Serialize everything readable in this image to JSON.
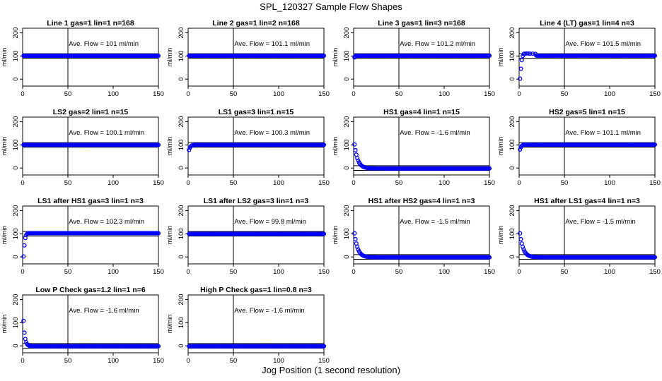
{
  "figure": {
    "title": "SPL_120327  Sample Flow Shapes",
    "xlabel": "Jog Position (1 second resolution)"
  },
  "style": {
    "point_color": "#0000ff",
    "axis_color": "#000000",
    "refline_color": "#000000"
  },
  "chart_data": [
    {
      "type": "scatter",
      "title": "Line 1 gas=1 lin=1 n=168",
      "ylabel": "ml/min",
      "annotation": "Ave. Flow =  101  ml/min",
      "xlim": [
        0,
        150
      ],
      "ylim": [
        -30,
        220
      ],
      "xticks": [
        0,
        50,
        100,
        150
      ],
      "yticks": [
        0,
        100,
        200
      ],
      "vline": 50,
      "hlines": [
        90,
        110
      ],
      "shape": "steady",
      "level": 101,
      "x": [
        0,
        150
      ]
    },
    {
      "type": "scatter",
      "title": "Line 2 gas=1 lin=2 n=168",
      "ylabel": "ml/min",
      "annotation": "Ave. Flow =  101.1  ml/min",
      "xlim": [
        0,
        150
      ],
      "ylim": [
        -30,
        220
      ],
      "xticks": [
        0,
        50,
        100,
        150
      ],
      "yticks": [
        0,
        100,
        200
      ],
      "vline": 50,
      "hlines": [
        90,
        110
      ],
      "shape": "steady",
      "level": 101.1,
      "x": [
        0,
        150
      ]
    },
    {
      "type": "scatter",
      "title": "Line 3 gas=1 lin=3 n=168",
      "ylabel": "ml/min",
      "annotation": "Ave. Flow =  101.2  ml/min",
      "xlim": [
        0,
        150
      ],
      "ylim": [
        -30,
        220
      ],
      "xticks": [
        0,
        50,
        100,
        150
      ],
      "yticks": [
        0,
        100,
        200
      ],
      "vline": 50,
      "hlines": [
        90,
        110
      ],
      "shape": "steady",
      "level": 101.2,
      "x": [
        0,
        150
      ],
      "start_points": [
        [
          1,
          94
        ],
        [
          2,
          98
        ]
      ]
    },
    {
      "type": "scatter",
      "title": "Line 4 (LT) gas=1 lin=4 n=3",
      "ylabel": "ml/min",
      "annotation": "Ave. Flow =  101.5  ml/min",
      "xlim": [
        0,
        150
      ],
      "ylim": [
        -30,
        220
      ],
      "xticks": [
        0,
        50,
        100,
        150
      ],
      "yticks": [
        0,
        100,
        200
      ],
      "vline": 50,
      "hlines": [
        90,
        110
      ],
      "shape": "steady",
      "level": 101.5,
      "x": [
        0,
        150
      ],
      "start_points": [
        [
          1,
          2
        ],
        [
          2,
          45
        ],
        [
          3,
          82
        ],
        [
          4,
          100
        ],
        [
          5,
          108
        ],
        [
          6,
          110
        ],
        [
          8,
          111
        ],
        [
          10,
          111
        ],
        [
          12,
          110
        ],
        [
          15,
          110
        ],
        [
          18,
          109
        ]
      ]
    },
    {
      "type": "scatter",
      "title": "LS2 gas=2 lin=1 n=15",
      "ylabel": "ml/min",
      "annotation": "Ave. Flow =  100.1  ml/min",
      "xlim": [
        0,
        150
      ],
      "ylim": [
        -30,
        220
      ],
      "xticks": [
        0,
        50,
        100,
        150
      ],
      "yticks": [
        0,
        100,
        200
      ],
      "vline": 50,
      "hlines": [
        90,
        110
      ],
      "shape": "steady",
      "level": 100.1,
      "x": [
        0,
        150
      ]
    },
    {
      "type": "scatter",
      "title": "LS1 gas=3 lin=1 n=15",
      "ylabel": "ml/min",
      "annotation": "Ave. Flow =  100.3  ml/min",
      "xlim": [
        0,
        150
      ],
      "ylim": [
        -30,
        220
      ],
      "xticks": [
        0,
        50,
        100,
        150
      ],
      "yticks": [
        0,
        100,
        200
      ],
      "vline": 50,
      "hlines": [
        90,
        110
      ],
      "shape": "steady",
      "level": 100.3,
      "x": [
        0,
        150
      ],
      "start_points": [
        [
          1,
          78
        ],
        [
          2,
          88
        ],
        [
          3,
          94
        ],
        [
          4,
          97
        ],
        [
          5,
          98
        ],
        [
          6,
          99
        ]
      ]
    },
    {
      "type": "scatter",
      "title": "HS1 gas=4 lin=1 n=15",
      "ylabel": "ml/min",
      "annotation": "Ave. Flow =  -1.6 ml/min",
      "xlim": [
        0,
        150
      ],
      "ylim": [
        -30,
        220
      ],
      "xticks": [
        0,
        50,
        100,
        150
      ],
      "yticks": [
        0,
        100,
        200
      ],
      "vline": 50,
      "hlines": [
        -10,
        10
      ],
      "shape": "decay",
      "level": -1.6,
      "start": 102,
      "tau": 3.6,
      "x": [
        0,
        150
      ]
    },
    {
      "type": "scatter",
      "title": "HS2 gas=5 lin=1 n=15",
      "ylabel": "ml/min",
      "annotation": "Ave. Flow =  101.1  ml/min",
      "xlim": [
        0,
        150
      ],
      "ylim": [
        -30,
        220
      ],
      "xticks": [
        0,
        50,
        100,
        150
      ],
      "yticks": [
        0,
        100,
        200
      ],
      "vline": 50,
      "hlines": [
        90,
        110
      ],
      "shape": "steady",
      "level": 101.1,
      "x": [
        0,
        150
      ],
      "start_points": [
        [
          1,
          80
        ],
        [
          2,
          90
        ],
        [
          3,
          96
        ],
        [
          4,
          99
        ]
      ]
    },
    {
      "type": "scatter",
      "title": "LS1 after HS1 gas=3 lin=1 n=3",
      "ylabel": "ml/min",
      "annotation": "Ave. Flow =  102.3  ml/min",
      "xlim": [
        0,
        150
      ],
      "ylim": [
        -30,
        220
      ],
      "xticks": [
        0,
        50,
        100,
        150
      ],
      "yticks": [
        0,
        100,
        200
      ],
      "vline": 50,
      "hlines": [
        90,
        110
      ],
      "shape": "steady",
      "level": 102.3,
      "x": [
        0,
        150
      ],
      "start_points": [
        [
          1,
          2
        ],
        [
          2,
          50
        ],
        [
          3,
          82
        ],
        [
          4,
          95
        ],
        [
          5,
          100
        ],
        [
          6,
          102
        ]
      ]
    },
    {
      "type": "scatter",
      "title": "LS1 after LS2 gas=3 lin=1 n=3",
      "ylabel": "ml/min",
      "annotation": "Ave. Flow =  99.8  ml/min",
      "xlim": [
        0,
        150
      ],
      "ylim": [
        -30,
        220
      ],
      "xticks": [
        0,
        50,
        100,
        150
      ],
      "yticks": [
        0,
        100,
        200
      ],
      "vline": 50,
      "hlines": [
        90,
        110
      ],
      "shape": "steady",
      "level": 99.8,
      "x": [
        0,
        150
      ]
    },
    {
      "type": "scatter",
      "title": "HS1 after HS2 gas=4 lin=1 n=3",
      "ylabel": "ml/min",
      "annotation": "Ave. Flow =  -1.5  ml/min",
      "xlim": [
        0,
        150
      ],
      "ylim": [
        -30,
        220
      ],
      "xticks": [
        0,
        50,
        100,
        150
      ],
      "yticks": [
        0,
        100,
        200
      ],
      "vline": 50,
      "hlines": [
        -10,
        10
      ],
      "shape": "decay",
      "level": -1.5,
      "start": 102,
      "tau": 3.6,
      "x": [
        0,
        150
      ]
    },
    {
      "type": "scatter",
      "title": "HS1 after LS1 gas=4 lin=1 n=3",
      "ylabel": "ml/min",
      "annotation": "Ave. Flow =  -1.5  ml/min",
      "xlim": [
        0,
        150
      ],
      "ylim": [
        -30,
        220
      ],
      "xticks": [
        0,
        50,
        100,
        150
      ],
      "yticks": [
        0,
        100,
        200
      ],
      "vline": 50,
      "hlines": [
        -10,
        10
      ],
      "shape": "decay",
      "level": -1.5,
      "start": 102,
      "tau": 3.6,
      "x": [
        0,
        150
      ]
    },
    {
      "type": "scatter",
      "title": "Low P Check gas=1.2 lin=1 n=6",
      "ylabel": "ml/min",
      "annotation": "Ave. Flow =  -1.6  ml/min",
      "xlim": [
        0,
        150
      ],
      "ylim": [
        -30,
        220
      ],
      "xticks": [
        0,
        50,
        100,
        150
      ],
      "yticks": [
        0,
        100,
        200
      ],
      "vline": 50,
      "hlines": [
        -10,
        10
      ],
      "shape": "decay",
      "level": -1.6,
      "start": 108,
      "tau": 1.6,
      "x": [
        0,
        150
      ]
    },
    {
      "type": "scatter",
      "title": "High P Check gas=1 lin=0.8 n=3",
      "ylabel": "ml/min",
      "annotation": "Ave. Flow =  -1.6  ml/min",
      "xlim": [
        0,
        150
      ],
      "ylim": [
        -30,
        220
      ],
      "xticks": [
        0,
        50,
        100,
        150
      ],
      "yticks": [
        0,
        100,
        200
      ],
      "vline": 50,
      "hlines": [
        -10,
        10
      ],
      "shape": "steady",
      "level": -1.6,
      "x": [
        0,
        150
      ]
    }
  ]
}
